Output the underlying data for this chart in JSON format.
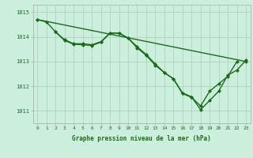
{
  "title": "Graphe pression niveau de la mer (hPa)",
  "background_color": "#cceedd",
  "grid_color": "#aaccbb",
  "line_color": "#1a6e1a",
  "marker_color": "#1a6e1a",
  "xlim": [
    -0.5,
    23.5
  ],
  "ylim": [
    1010.5,
    1015.3
  ],
  "yticks": [
    1011,
    1012,
    1013,
    1014,
    1015
  ],
  "xticks": [
    0,
    1,
    2,
    3,
    4,
    5,
    6,
    7,
    8,
    9,
    10,
    11,
    12,
    13,
    14,
    15,
    16,
    17,
    18,
    19,
    20,
    21,
    22,
    23
  ],
  "series1_x": [
    0,
    1,
    2,
    3,
    4,
    5,
    6,
    7,
    8,
    9,
    10,
    11,
    12,
    13,
    14,
    15,
    16,
    17,
    18,
    19,
    20,
    21,
    22
  ],
  "series1_y": [
    1014.7,
    1014.6,
    1014.2,
    1013.85,
    1013.7,
    1013.68,
    1013.65,
    1013.78,
    1014.15,
    1014.15,
    1013.95,
    1013.55,
    1013.25,
    1012.85,
    1012.55,
    1012.3,
    1011.7,
    1011.55,
    1011.2,
    1011.8,
    1012.1,
    1012.4,
    1013.0
  ],
  "series2_x": [
    2,
    3,
    4,
    5,
    6,
    7,
    8,
    9,
    10,
    11,
    12,
    13,
    14,
    15,
    16,
    17,
    18,
    19,
    20,
    21,
    22,
    23
  ],
  "series2_y": [
    1014.2,
    1013.88,
    1013.72,
    1013.72,
    1013.68,
    1013.8,
    1014.15,
    1014.15,
    1013.95,
    1013.6,
    1013.28,
    1012.9,
    1012.55,
    1012.3,
    1011.73,
    1011.57,
    1011.05,
    1011.42,
    1011.8,
    1012.45,
    1012.65,
    1013.05
  ],
  "series3_x": [
    0,
    23
  ],
  "series3_y": [
    1014.7,
    1013.0
  ],
  "title_fontsize": 5.5,
  "tick_fontsize": 4.5,
  "ytick_fontsize": 5.0,
  "linewidth": 1.0,
  "markersize": 2.0
}
